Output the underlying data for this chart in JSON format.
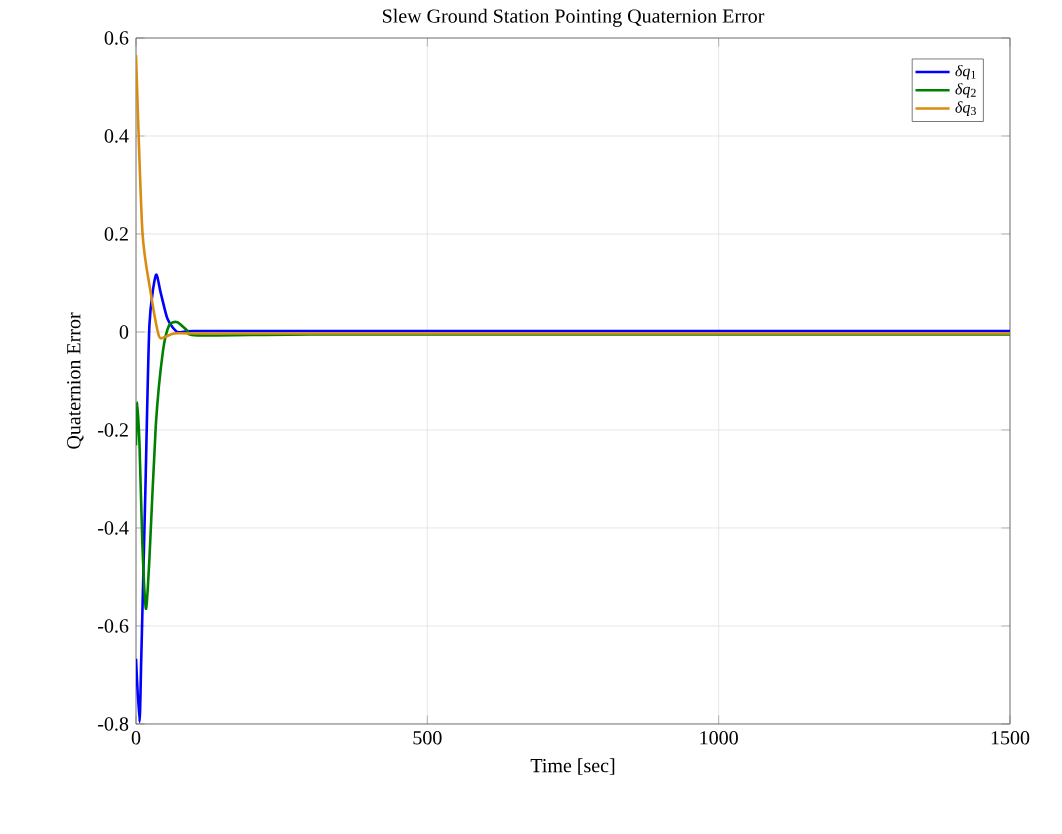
{
  "chart_data": {
    "type": "line",
    "title": "Slew Ground Station Pointing Quaternion Error",
    "xlabel": "Time [sec]",
    "ylabel": "Quaternion Error",
    "xlim": [
      0,
      1500
    ],
    "ylim": [
      -0.8,
      0.6
    ],
    "xticks": [
      0,
      500,
      1000,
      1500
    ],
    "yticks": [
      -0.8,
      -0.6,
      -0.4,
      -0.2,
      0,
      0.2,
      0.4,
      0.6
    ],
    "grid": true,
    "legend": "top right",
    "line_style": "solid",
    "series": [
      {
        "name": "*δq*$_{1}$",
        "color": "#0000ff",
        "x": [
          0,
          6,
          9,
          16,
          23,
          34,
          42,
          54,
          71,
          100,
          300,
          700,
          1000,
          1300,
          1500
        ],
        "values": [
          -0.667,
          -0.796,
          -0.667,
          -0.327,
          0.014,
          0.116,
          0.082,
          0.027,
          0,
          0.002,
          0.002,
          0.002,
          0.002,
          0.002,
          0.002
        ]
      },
      {
        "name": "*δq*$_{2}$",
        "color": "#008000",
        "x": [
          0,
          2,
          6,
          11,
          17,
          23,
          34,
          46,
          57,
          71,
          88,
          105,
          300,
          700,
          1000,
          1300,
          1500
        ],
        "values": [
          -0.231,
          -0.143,
          -0.231,
          -0.435,
          -0.565,
          -0.463,
          -0.19,
          -0.041,
          0.014,
          0.02,
          0.003,
          -0.007,
          -0.005,
          -0.005,
          -0.005,
          -0.005,
          -0.005
        ]
      },
      {
        "name": "*δq*$_{3}$",
        "color": "#d98c10",
        "x": [
          0,
          11,
          25,
          39,
          48,
          65,
          100,
          300,
          700,
          1000,
          1300,
          1500
        ],
        "values": [
          0.565,
          0.204,
          0.082,
          -0.007,
          -0.011,
          -0.003,
          -0.003,
          -0.003,
          -0.003,
          -0.003,
          -0.003,
          -0.003
        ]
      }
    ]
  }
}
